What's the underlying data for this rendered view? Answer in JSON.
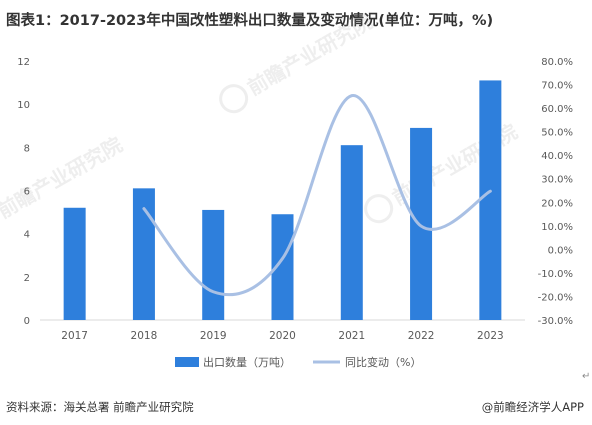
{
  "header": {
    "title": "图表1：2017-2023年中国改性塑料出口数量及变动情况(单位：万吨，%)"
  },
  "footer": {
    "source": "资料来源：海关总署 前瞻产业研究院",
    "brand": "@前瞻经济学人APP"
  },
  "watermark": {
    "text": "前瞻产业研究院"
  },
  "colors": {
    "bar": "#2e7fdc",
    "line": "#a9c0e4",
    "axis": "#d9d9d9",
    "text": "#595959"
  },
  "chart_data": {
    "type": "bar",
    "categories": [
      "2017",
      "2018",
      "2019",
      "2020",
      "2021",
      "2022",
      "2023"
    ],
    "series": [
      {
        "name": "出口数量（万吨）",
        "type": "bar",
        "axis": "left",
        "values": [
          5.2,
          6.1,
          5.1,
          4.9,
          8.1,
          8.9,
          11.1
        ]
      },
      {
        "name": "同比变动（%）",
        "type": "line",
        "smooth": true,
        "axis": "right",
        "values": [
          null,
          17.3,
          -18.0,
          -3.9,
          65.3,
          9.9,
          24.7
        ]
      }
    ],
    "y_left": {
      "min": 0,
      "max": 12,
      "ticks": [
        "0",
        "2",
        "4",
        "6",
        "8",
        "10",
        "12"
      ]
    },
    "y_right": {
      "min": -30,
      "max": 80,
      "ticks": [
        "-30.0%",
        "-20.0%",
        "-10.0%",
        "0.0%",
        "10.0%",
        "20.0%",
        "30.0%",
        "40.0%",
        "50.0%",
        "60.0%",
        "70.0%",
        "80.0%"
      ]
    },
    "grid": false,
    "legend_position": "bottom"
  }
}
